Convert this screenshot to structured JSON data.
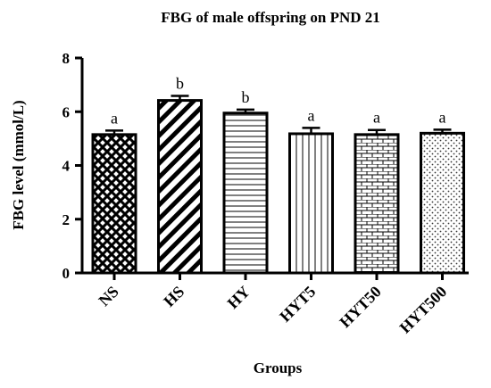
{
  "chart_data": {
    "type": "bar",
    "title": "FBG of male offspring on PND 21",
    "xlabel": "Groups",
    "ylabel": "FBG level (mmol/L)",
    "ylim": [
      0,
      8
    ],
    "yticks": [
      "0",
      "2",
      "4",
      "6",
      "8"
    ],
    "categories": [
      "NS",
      "HS",
      "HY",
      "HYT5",
      "HYT50",
      "HYT500"
    ],
    "values": [
      5.15,
      6.42,
      5.95,
      5.18,
      5.15,
      5.2
    ],
    "errors": [
      0.15,
      0.17,
      0.13,
      0.22,
      0.17,
      0.13
    ],
    "significance": [
      "a",
      "b",
      "b",
      "a",
      "a",
      "a"
    ],
    "patterns": [
      "crosshatch-diamond",
      "diagonal-stripes",
      "horizontal-lines",
      "vertical-lines",
      "brick",
      "dots"
    ],
    "grid": false,
    "legend": "none"
  }
}
